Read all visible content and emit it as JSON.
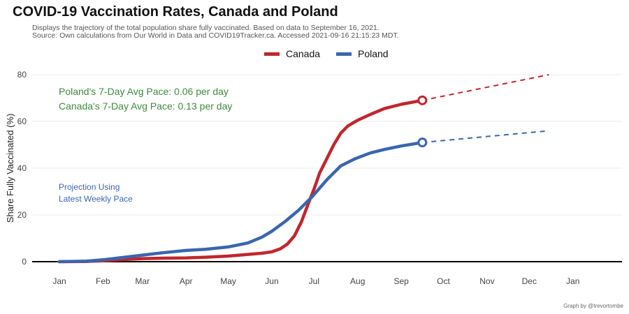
{
  "chart_data": {
    "type": "line",
    "title": "COVID-19 Vaccination Rates, Canada and Poland",
    "subtitle": [
      "Displays the trajectory of the total population share fully vaccinated. Based on data to September 16, 2021.",
      "Source: Own calculations from Our World in Data and COVID19Tracker.ca. Accessed 2021-09-16 21:15:23 MDT."
    ],
    "ylabel": "Share Fully Vaccinated (%)",
    "xlabel": "",
    "ylim": [
      0,
      80
    ],
    "yticks": [
      0,
      20,
      40,
      60,
      80
    ],
    "xticks": [
      "Jan",
      "Feb",
      "Mar",
      "Apr",
      "May",
      "Jun",
      "Jul",
      "Aug",
      "Sep",
      "Oct",
      "Nov",
      "Dec",
      "Jan"
    ],
    "grid": true,
    "legend_position": "top",
    "annotations": {
      "poland_pace": "Poland's 7-Day Avg Pace: 0.06 per day",
      "canada_pace": "Canada's 7-Day Avg Pace: 0.13 per day",
      "projection_line1": "Projection Using",
      "projection_line2": "Latest Weekly Pace"
    },
    "caption": "Graph by @trevortombe",
    "series": [
      {
        "name": "Canada",
        "color": "#c0272d",
        "points": [
          [
            "2021-01-01",
            0
          ],
          [
            "2021-01-20",
            0.1
          ],
          [
            "2021-02-01",
            0.4
          ],
          [
            "2021-02-15",
            0.9
          ],
          [
            "2021-03-01",
            1.3
          ],
          [
            "2021-03-15",
            1.5
          ],
          [
            "2021-04-01",
            1.6
          ],
          [
            "2021-04-15",
            1.9
          ],
          [
            "2021-05-01",
            2.4
          ],
          [
            "2021-05-15",
            3.1
          ],
          [
            "2021-05-25",
            3.6
          ],
          [
            "2021-06-01",
            4.2
          ],
          [
            "2021-06-07",
            5.5
          ],
          [
            "2021-06-12",
            7.5
          ],
          [
            "2021-06-17",
            11
          ],
          [
            "2021-06-22",
            17
          ],
          [
            "2021-06-27",
            25
          ],
          [
            "2021-07-01",
            31
          ],
          [
            "2021-07-05",
            38
          ],
          [
            "2021-07-10",
            44
          ],
          [
            "2021-07-15",
            50
          ],
          [
            "2021-07-20",
            55
          ],
          [
            "2021-07-25",
            58
          ],
          [
            "2021-08-01",
            60.5
          ],
          [
            "2021-08-10",
            63
          ],
          [
            "2021-08-20",
            65.5
          ],
          [
            "2021-09-01",
            67.3
          ],
          [
            "2021-09-16",
            69
          ]
        ],
        "projection": [
          [
            "2021-09-16",
            69
          ],
          [
            "2021-12-15",
            80
          ]
        ]
      },
      {
        "name": "Poland",
        "color": "#3a66ae",
        "points": [
          [
            "2021-01-01",
            0
          ],
          [
            "2021-01-20",
            0.2
          ],
          [
            "2021-02-01",
            0.8
          ],
          [
            "2021-02-15",
            1.8
          ],
          [
            "2021-03-01",
            2.8
          ],
          [
            "2021-03-15",
            3.8
          ],
          [
            "2021-04-01",
            4.8
          ],
          [
            "2021-04-15",
            5.3
          ],
          [
            "2021-05-01",
            6.3
          ],
          [
            "2021-05-15",
            8
          ],
          [
            "2021-05-25",
            10.5
          ],
          [
            "2021-06-01",
            13
          ],
          [
            "2021-06-10",
            17
          ],
          [
            "2021-06-20",
            22
          ],
          [
            "2021-06-30",
            28
          ],
          [
            "2021-07-10",
            35
          ],
          [
            "2021-07-20",
            41
          ],
          [
            "2021-07-30",
            44
          ],
          [
            "2021-08-10",
            46.5
          ],
          [
            "2021-08-20",
            48
          ],
          [
            "2021-09-01",
            49.5
          ],
          [
            "2021-09-16",
            51
          ]
        ],
        "projection": [
          [
            "2021-09-16",
            51
          ],
          [
            "2021-12-15",
            56
          ]
        ]
      }
    ]
  }
}
